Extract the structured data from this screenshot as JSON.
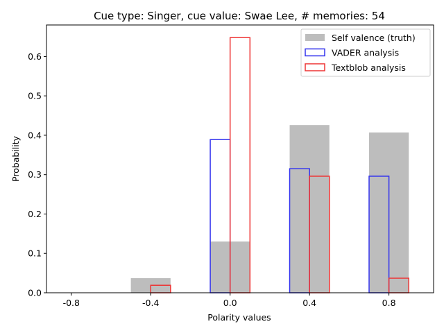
{
  "chart_data": {
    "type": "bar",
    "title": "Cue type: Singer, cue value: Swae Lee, # memories: 54",
    "xlabel": "Polarity values",
    "ylabel": "Probability",
    "x": [
      -0.8,
      -0.4,
      0.0,
      0.4,
      0.8
    ],
    "xtick_labels": [
      "-0.8",
      "-0.4",
      "0.0",
      "0.4",
      "0.8"
    ],
    "ylim": [
      0,
      0.68
    ],
    "yticks": [
      0.0,
      0.1,
      0.2,
      0.3,
      0.4,
      0.5,
      0.6
    ],
    "ytick_labels": [
      "0.0",
      "0.1",
      "0.2",
      "0.3",
      "0.4",
      "0.5",
      "0.6"
    ],
    "legend_position": "top-right",
    "grid": false,
    "series": [
      {
        "name": "Self valence (truth)",
        "style": "filled",
        "color": "#bdbdbd",
        "values": [
          0.0,
          0.037,
          0.13,
          0.426,
          0.407
        ]
      },
      {
        "name": "VADER analysis",
        "style": "outline",
        "color": "#3333ee",
        "values": [
          0.0,
          0.0,
          0.389,
          0.315,
          0.296
        ]
      },
      {
        "name": "Textblob analysis",
        "style": "outline",
        "color": "#ee3333",
        "values": [
          0.0,
          0.019,
          0.648,
          0.296,
          0.037
        ]
      }
    ]
  }
}
